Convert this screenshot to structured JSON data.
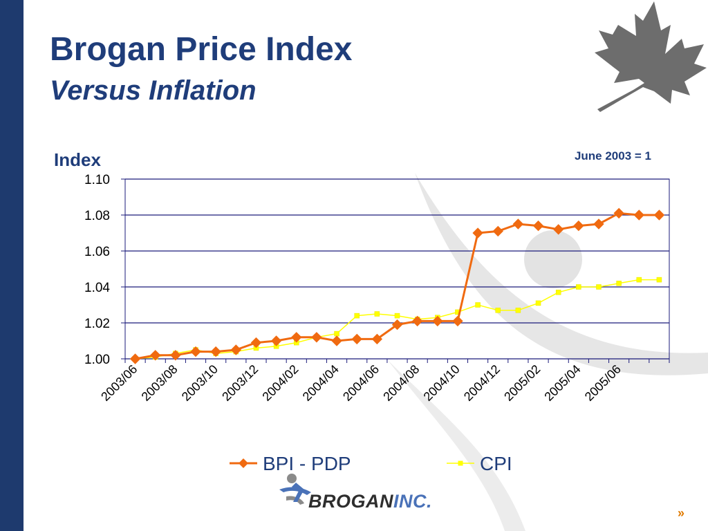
{
  "slide": {
    "title": "Brogan Price Index",
    "subtitle": "Versus Inflation",
    "logo_main": "BROGAN",
    "logo_suffix": "INC.",
    "next_glyph": "»"
  },
  "colors": {
    "sidebar": "#1e3a6e",
    "title": "#1f3d7a",
    "bpi": "#f06a10",
    "cpi": "#ffff00",
    "axis": "#1a1a7a",
    "leaf": "#6d6d6d"
  },
  "chart_data": {
    "type": "line",
    "ylabel": "Index",
    "note": "June 2003 = 1",
    "ylim": [
      1.0,
      1.1
    ],
    "yticks": [
      "1.00",
      "1.02",
      "1.04",
      "1.06",
      "1.08",
      "1.10"
    ],
    "grid": true,
    "legend_position": "bottom",
    "x_tick_labels": [
      "2003/06",
      "2003/08",
      "2003/10",
      "2003/12",
      "2004/02",
      "2004/04",
      "2004/06",
      "2004/08",
      "2004/10",
      "2004/12",
      "2005/02",
      "2005/04",
      "2005/06"
    ],
    "x": [
      "2003/06",
      "2003/07",
      "2003/08",
      "2003/09",
      "2003/10",
      "2003/11",
      "2003/12",
      "2004/01",
      "2004/02",
      "2004/03",
      "2004/04",
      "2004/05",
      "2004/06",
      "2004/07",
      "2004/08",
      "2004/09",
      "2004/10",
      "2004/11",
      "2004/12",
      "2005/01",
      "2005/02",
      "2005/03",
      "2005/04",
      "2005/05",
      "2005/06",
      "2005/07",
      "2005/08"
    ],
    "series": [
      {
        "name": "BPI - PDP",
        "color": "#f06a10",
        "marker": "diamond",
        "values": [
          1.0,
          1.002,
          1.002,
          1.004,
          1.004,
          1.005,
          1.009,
          1.01,
          1.012,
          1.012,
          1.01,
          1.011,
          1.011,
          1.019,
          1.021,
          1.021,
          1.021,
          1.07,
          1.071,
          1.075,
          1.074,
          1.072,
          1.074,
          1.075,
          1.081,
          1.08,
          1.08
        ]
      },
      {
        "name": "CPI",
        "color": "#ffff00",
        "marker": "square",
        "values": [
          1.0,
          1.001,
          1.003,
          1.005,
          1.003,
          1.004,
          1.006,
          1.007,
          1.009,
          1.012,
          1.014,
          1.024,
          1.025,
          1.024,
          1.022,
          1.023,
          1.026,
          1.03,
          1.027,
          1.027,
          1.031,
          1.037,
          1.04,
          1.04,
          1.042,
          1.044,
          1.044
        ]
      }
    ]
  }
}
